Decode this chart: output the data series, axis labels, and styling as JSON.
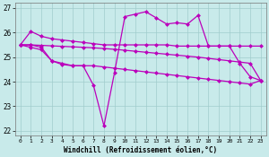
{
  "xlabel": "Windchill (Refroidissement éolien,°C)",
  "xlim": [
    -0.5,
    23.5
  ],
  "ylim": [
    21.8,
    27.2
  ],
  "yticks": [
    22,
    23,
    24,
    25,
    26,
    27
  ],
  "xticks": [
    0,
    1,
    2,
    3,
    4,
    5,
    6,
    7,
    8,
    9,
    10,
    11,
    12,
    13,
    14,
    15,
    16,
    17,
    18,
    19,
    20,
    21,
    22,
    23
  ],
  "bg_color": "#c8eaea",
  "grid_color": "#a0cccc",
  "line_color": "#bb00bb",
  "line1_y": [
    25.5,
    26.05,
    25.85,
    25.75,
    25.7,
    25.65,
    25.6,
    25.55,
    25.5,
    25.5,
    25.5,
    25.5,
    25.5,
    25.5,
    25.5,
    25.45,
    25.45,
    25.45,
    25.45,
    25.45,
    25.45,
    25.45,
    25.45,
    25.45
  ],
  "line2_y": [
    25.5,
    25.5,
    25.48,
    25.46,
    25.44,
    25.42,
    25.4,
    25.38,
    25.35,
    25.32,
    25.28,
    25.24,
    25.2,
    25.16,
    25.12,
    25.08,
    25.04,
    25.0,
    24.95,
    24.9,
    24.85,
    24.8,
    24.75,
    24.05
  ],
  "line3_y": [
    25.5,
    25.4,
    25.3,
    24.85,
    24.75,
    24.65,
    24.65,
    24.65,
    24.6,
    24.55,
    24.5,
    24.45,
    24.4,
    24.35,
    24.3,
    24.25,
    24.2,
    24.15,
    24.1,
    24.05,
    24.0,
    23.95,
    23.9,
    24.05
  ],
  "line4_y": [
    25.5,
    25.5,
    25.4,
    24.85,
    24.7,
    24.65,
    24.65,
    23.85,
    22.2,
    24.35,
    26.65,
    26.75,
    26.85,
    26.6,
    26.35,
    26.4,
    26.35,
    26.7,
    25.45,
    25.45,
    25.45,
    24.75,
    24.2,
    24.05
  ],
  "marker_size": 2.5,
  "line_width": 0.9
}
